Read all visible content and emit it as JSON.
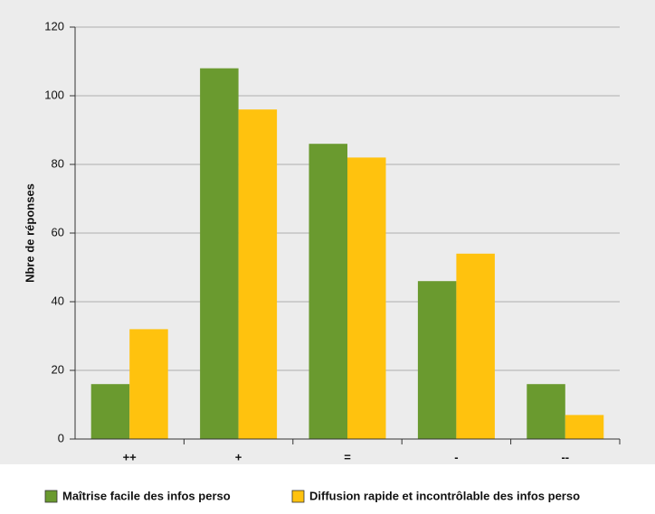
{
  "chart_data": {
    "type": "bar",
    "y_label": "Nbre de réponses",
    "categories": [
      "++",
      "+",
      "=",
      "-",
      "--"
    ],
    "series": [
      {
        "name": "Maîtrise facile des infos perso",
        "color": "#6a9a2f",
        "values": [
          16,
          108,
          86,
          46,
          16
        ]
      },
      {
        "name": "Diffusion rapide et incontrôlable des infos perso",
        "color": "#ffc20e",
        "values": [
          32,
          96,
          82,
          54,
          7
        ]
      }
    ],
    "ylim": [
      0,
      120
    ],
    "yticks": [
      0,
      20,
      40,
      60,
      80,
      100,
      120
    ],
    "grid": true
  }
}
